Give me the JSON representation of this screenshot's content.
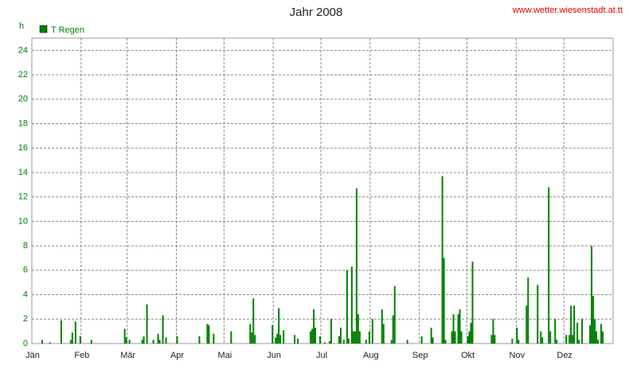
{
  "chart_data": {
    "type": "bar",
    "title": "Jahr 2008",
    "source": "www.wetter.wiesenstadt.at.tt",
    "y_label": "h",
    "categories": [
      "Jän",
      null,
      null,
      null,
      null,
      null,
      null,
      null,
      null,
      null,
      null,
      null,
      null,
      null,
      null,
      null,
      null,
      null,
      null,
      null,
      null,
      null,
      null,
      null,
      null,
      null,
      null,
      null,
      null,
      null,
      null,
      "Feb",
      null,
      null,
      null,
      null,
      null,
      null,
      null,
      null,
      null,
      null,
      null,
      null,
      null,
      null,
      null,
      null,
      null,
      null,
      null,
      null,
      null,
      null,
      null,
      null,
      null,
      null,
      null,
      null,
      "Mär",
      null,
      null,
      null,
      null,
      null,
      null,
      null,
      null,
      null,
      null,
      null,
      null,
      null,
      null,
      null,
      null,
      null,
      null,
      null,
      null,
      null,
      null,
      null,
      null,
      null,
      null,
      null,
      null,
      null,
      null,
      "Apr",
      null,
      null,
      null,
      null,
      null,
      null,
      null,
      null,
      null,
      null,
      null,
      null,
      null,
      null,
      null,
      null,
      null,
      null,
      null,
      null,
      null,
      null,
      null,
      null,
      null,
      null,
      null,
      null,
      null,
      "Mai",
      null,
      null,
      null,
      null,
      null,
      null,
      null,
      null,
      null,
      null,
      null,
      null,
      null,
      null,
      null,
      null,
      null,
      null,
      null,
      null,
      null,
      null,
      null,
      null,
      null,
      null,
      null,
      null,
      null,
      null,
      "Jun",
      null,
      null,
      null,
      null,
      null,
      null,
      null,
      null,
      null,
      null,
      null,
      null,
      null,
      null,
      null,
      null,
      null,
      null,
      null,
      null,
      null,
      null,
      null,
      null,
      null,
      null,
      null,
      null,
      null,
      "Jul",
      null,
      null,
      null,
      null,
      null,
      null,
      null,
      null,
      null,
      null,
      null,
      null,
      null,
      null,
      null,
      null,
      null,
      null,
      null,
      null,
      null,
      null,
      null,
      null,
      null,
      null,
      null,
      null,
      null,
      null,
      "Aug",
      null,
      null,
      null,
      null,
      null,
      null,
      null,
      null,
      null,
      null,
      null,
      null,
      null,
      null,
      null,
      null,
      null,
      null,
      null,
      null,
      null,
      null,
      null,
      null,
      null,
      null,
      null,
      null,
      null,
      null,
      "Sep",
      null,
      null,
      null,
      null,
      null,
      null,
      null,
      null,
      null,
      null,
      null,
      null,
      null,
      null,
      null,
      null,
      null,
      null,
      null,
      null,
      null,
      null,
      null,
      null,
      null,
      null,
      null,
      null,
      null,
      "Okt",
      null,
      null,
      null,
      null,
      null,
      null,
      null,
      null,
      null,
      null,
      null,
      null,
      null,
      null,
      null,
      null,
      null,
      null,
      null,
      null,
      null,
      null,
      null,
      null,
      null,
      null,
      null,
      null,
      null,
      null,
      "Nov",
      null,
      null,
      null,
      null,
      null,
      null,
      null,
      null,
      null,
      null,
      null,
      null,
      null,
      null,
      null,
      null,
      null,
      null,
      null,
      null,
      null,
      null,
      null,
      null,
      null,
      null,
      null,
      null,
      null,
      "Dez",
      null,
      null,
      null,
      null,
      null,
      null,
      null,
      null,
      null,
      null,
      null,
      null,
      null,
      null,
      null,
      null,
      null,
      null,
      null,
      null,
      null,
      null,
      null,
      null,
      null,
      null,
      null,
      null,
      null,
      null
    ],
    "series": [
      {
        "name": "T Regen",
        "color": "#008000",
        "values": [
          0,
          0,
          0,
          0,
          0,
          0,
          0.3,
          0,
          0,
          0,
          0,
          0.1,
          0,
          0,
          0,
          0,
          0,
          0,
          1.9,
          0,
          0,
          0,
          0,
          0,
          0.3,
          0.9,
          0,
          1.8,
          0,
          0,
          0.6,
          0,
          0,
          0,
          0,
          0,
          0,
          0.3,
          0,
          0,
          0,
          0,
          0,
          0,
          0,
          0,
          0,
          0,
          0,
          0,
          0,
          0,
          0,
          0,
          0,
          0,
          0,
          0,
          1.2,
          0.5,
          0,
          0.3,
          0,
          0,
          0,
          0,
          0,
          0,
          0,
          0.3,
          0.6,
          0,
          3.2,
          0,
          0,
          0,
          0.3,
          0,
          0,
          0.8,
          0.3,
          0,
          2.3,
          0,
          0.5,
          0,
          0,
          0,
          0,
          0,
          0,
          0.6,
          0,
          0,
          0,
          0,
          0,
          0,
          0,
          0,
          0,
          0,
          0,
          0,
          0,
          0.6,
          0,
          0,
          0,
          0,
          1.6,
          1.5,
          0,
          0,
          0.8,
          0,
          0,
          0,
          0,
          0,
          0,
          0,
          0,
          0,
          0,
          1.0,
          0,
          0,
          0,
          0,
          0,
          0,
          0,
          0,
          0,
          0,
          0,
          1.6,
          0.9,
          3.7,
          0.7,
          0,
          0,
          0,
          0,
          0,
          0,
          0,
          0,
          0,
          0,
          1.5,
          0,
          0.5,
          0.8,
          2.9,
          0.7,
          0,
          1.1,
          0,
          0,
          0,
          0,
          0,
          0,
          0.7,
          0,
          0.4,
          0,
          0,
          0,
          0,
          0,
          0,
          0,
          1.0,
          1.2,
          2.8,
          1.3,
          0,
          0,
          0.6,
          0,
          0,
          0.1,
          0,
          0,
          0.2,
          2.0,
          0,
          0,
          0,
          0,
          0.6,
          1.3,
          0,
          0.3,
          0,
          6.0,
          0.4,
          0,
          6.3,
          1.0,
          1.0,
          12.7,
          2.4,
          1.0,
          0,
          0,
          0,
          0.3,
          0,
          1.0,
          0,
          2.0,
          0,
          0,
          0,
          0,
          0,
          2.8,
          1.6,
          0,
          0,
          0,
          0,
          0.3,
          2.3,
          4.7,
          0,
          0,
          0,
          0,
          0,
          0,
          0,
          0.3,
          0,
          0,
          0,
          0,
          0,
          0,
          0,
          0,
          0.6,
          0,
          0,
          0,
          0,
          0,
          1.3,
          0.5,
          0,
          0,
          0,
          0,
          0,
          13.7,
          7.0,
          0.3,
          0,
          0,
          0,
          1.0,
          2.4,
          1.0,
          0,
          2.4,
          2.8,
          1.0,
          0,
          0,
          0,
          0.6,
          1.0,
          1.7,
          6.7,
          0,
          0,
          0,
          0,
          0,
          0,
          0,
          0,
          0,
          0,
          0,
          0.7,
          2.0,
          0.7,
          0,
          0,
          0,
          0,
          0,
          0,
          0,
          0,
          0,
          0,
          0.4,
          0,
          0,
          1.3,
          0.3,
          0,
          0,
          0,
          0,
          3.1,
          5.4,
          0,
          0,
          0,
          0,
          0,
          4.8,
          0,
          1.0,
          0.5,
          0,
          0,
          0,
          12.8,
          1.0,
          0,
          0,
          2.0,
          0.3,
          0,
          0,
          0,
          0,
          0,
          0.7,
          0,
          0.7,
          3.1,
          0.7,
          3.1,
          0,
          1.7,
          0.3,
          0,
          2.0,
          0,
          0,
          0,
          0,
          1.5,
          8.0,
          3.9,
          2.0,
          1.0,
          0.3,
          0,
          1.6,
          1.0,
          0,
          0,
          0,
          0,
          0,
          0
        ]
      }
    ],
    "ylim": [
      0,
      25
    ],
    "yticks": [
      0,
      2,
      4,
      6,
      8,
      10,
      12,
      14,
      16,
      18,
      20,
      22,
      24
    ],
    "grid": true
  }
}
